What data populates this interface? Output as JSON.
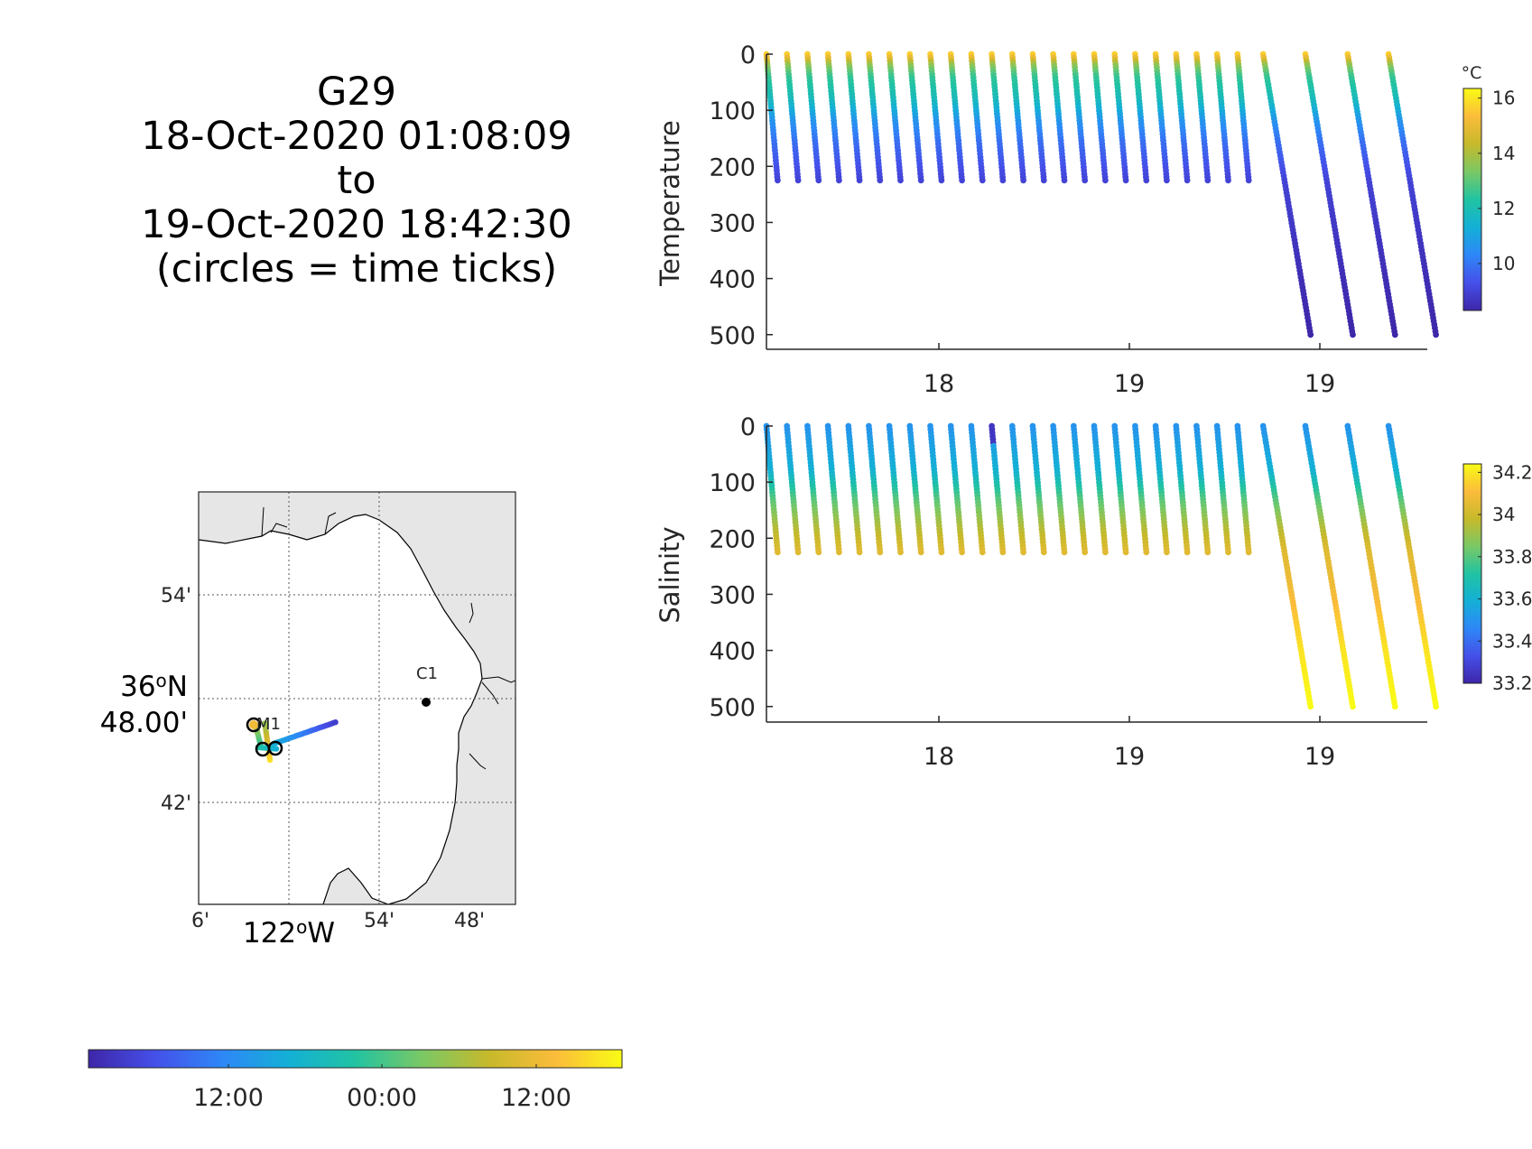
{
  "title_lines": [
    "G29",
    "18-Oct-2020 01:08:09",
    "to",
    "19-Oct-2020 18:42:30",
    "(circles = time ticks)"
  ],
  "colors": {
    "parula_stops": [
      "#3e26a8",
      "#4550e9",
      "#2e87f7",
      "#14b0d6",
      "#21c3a2",
      "#7ac865",
      "#c7b92b",
      "#fbbc3b",
      "#f9fb15"
    ],
    "axis": "#262626",
    "land": "#e6e6e6"
  },
  "chart_data": [
    {
      "id": "temperature",
      "type": "scatter",
      "ylabel": "Temperature",
      "colorbar_unit": "°C",
      "colorbar_ticks": [
        "10",
        "12",
        "14",
        "16"
      ],
      "colorbar_range": [
        8.3,
        16.2
      ],
      "xtick_labels": [
        "18",
        "19",
        "19"
      ],
      "yticks": [
        0,
        100,
        200,
        300,
        400,
        500
      ],
      "ylim": [
        0,
        520
      ],
      "y_reversed": true,
      "profiles": [
        {
          "start": 0.0,
          "depth": 225
        },
        {
          "start": 0.032,
          "depth": 225
        },
        {
          "start": 0.064,
          "depth": 225
        },
        {
          "start": 0.096,
          "depth": 225
        },
        {
          "start": 0.128,
          "depth": 225
        },
        {
          "start": 0.16,
          "depth": 225
        },
        {
          "start": 0.192,
          "depth": 225
        },
        {
          "start": 0.224,
          "depth": 225
        },
        {
          "start": 0.256,
          "depth": 225
        },
        {
          "start": 0.288,
          "depth": 225
        },
        {
          "start": 0.32,
          "depth": 225
        },
        {
          "start": 0.352,
          "depth": 225
        },
        {
          "start": 0.384,
          "depth": 225
        },
        {
          "start": 0.416,
          "depth": 225
        },
        {
          "start": 0.448,
          "depth": 225
        },
        {
          "start": 0.48,
          "depth": 225
        },
        {
          "start": 0.512,
          "depth": 225
        },
        {
          "start": 0.544,
          "depth": 225
        },
        {
          "start": 0.576,
          "depth": 225
        },
        {
          "start": 0.608,
          "depth": 225
        },
        {
          "start": 0.64,
          "depth": 225
        },
        {
          "start": 0.672,
          "depth": 225
        },
        {
          "start": 0.704,
          "depth": 225
        },
        {
          "start": 0.736,
          "depth": 225
        },
        {
          "start": 0.776,
          "depth": 500
        },
        {
          "start": 0.842,
          "depth": 500
        },
        {
          "start": 0.908,
          "depth": 500
        },
        {
          "start": 0.972,
          "depth": 500
        }
      ],
      "temperature_profile": [
        {
          "depth": 0,
          "value": 15.5
        },
        {
          "depth": 20,
          "value": 13.5
        },
        {
          "depth": 40,
          "value": 12.5
        },
        {
          "depth": 80,
          "value": 11.8
        },
        {
          "depth": 120,
          "value": 10.6
        },
        {
          "depth": 160,
          "value": 9.8
        },
        {
          "depth": 225,
          "value": 9.0
        },
        {
          "depth": 350,
          "value": 8.6
        },
        {
          "depth": 500,
          "value": 8.3
        }
      ]
    },
    {
      "id": "salinity",
      "type": "scatter",
      "ylabel": "Salinity",
      "colorbar_unit": "",
      "colorbar_ticks": [
        "33.2",
        "33.4",
        "33.6",
        "33.8",
        "34",
        "34.2"
      ],
      "colorbar_range": [
        33.2,
        34.25
      ],
      "xtick_labels": [
        "18",
        "19",
        "19"
      ],
      "yticks": [
        0,
        100,
        200,
        300,
        400,
        500
      ],
      "ylim": [
        0,
        520
      ],
      "y_reversed": true,
      "salinity_profile": [
        {
          "depth": 0,
          "value": 33.5
        },
        {
          "depth": 80,
          "value": 33.6
        },
        {
          "depth": 130,
          "value": 33.8
        },
        {
          "depth": 180,
          "value": 33.95
        },
        {
          "depth": 225,
          "value": 34.05
        },
        {
          "depth": 300,
          "value": 34.1
        },
        {
          "depth": 400,
          "value": 34.2
        },
        {
          "depth": 500,
          "value": 34.25
        }
      ]
    }
  ],
  "map": {
    "lat_labels": [
      "54'",
      "42'"
    ],
    "lat_center_labels": [
      "36°N",
      "48.00'"
    ],
    "lon_labels": [
      "6'",
      "54'",
      "48'"
    ],
    "lon_center_label": "122°W",
    "stations": [
      {
        "name": "M1",
        "lon": -122.035,
        "lat": 36.753
      },
      {
        "name": "C1",
        "lon": -121.845,
        "lat": 36.797
      }
    ],
    "track_color_range": "time"
  },
  "time_colorbar": {
    "ticks": [
      "12:00",
      "00:00",
      "12:00"
    ]
  }
}
